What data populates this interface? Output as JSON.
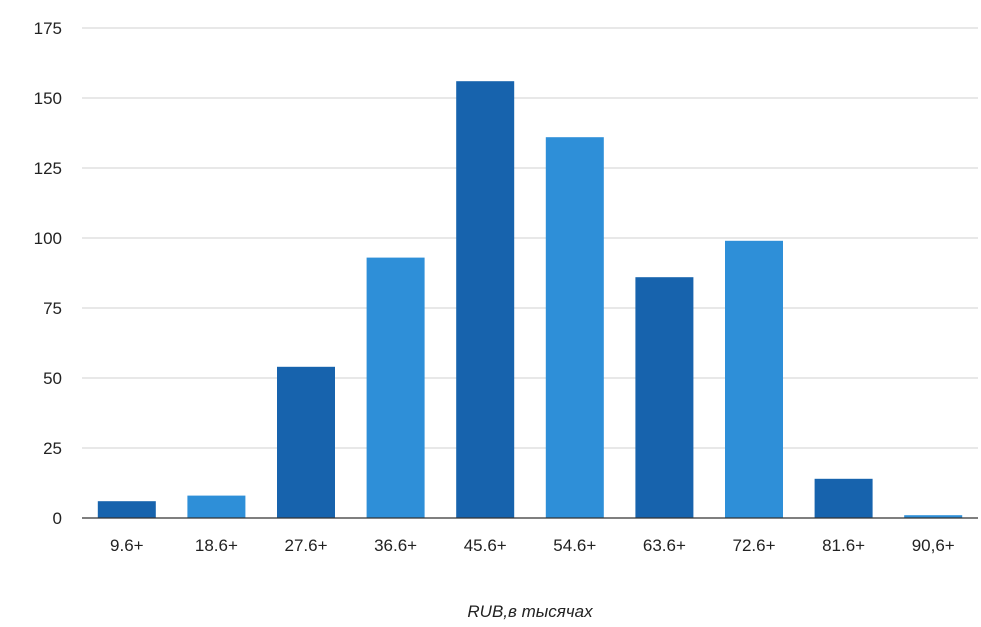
{
  "chart_data": {
    "type": "bar",
    "categories": [
      "9.6+",
      "18.6+",
      "27.6+",
      "36.6+",
      "45.6+",
      "54.6+",
      "63.6+",
      "72.6+",
      "81.6+",
      "90,6+"
    ],
    "values": [
      6,
      8,
      54,
      93,
      156,
      136,
      86,
      99,
      14,
      1
    ],
    "title": "",
    "xlabel": "RUB,в тысячах",
    "ylabel": "",
    "ylim": [
      0,
      175
    ],
    "yticks": [
      0,
      25,
      50,
      75,
      100,
      125,
      150,
      175
    ],
    "grid": true,
    "legend": "none",
    "colors": [
      "#1763ad",
      "#2e8fd8"
    ]
  }
}
